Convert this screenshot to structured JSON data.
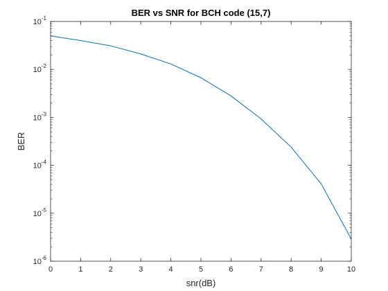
{
  "chart_data": {
    "type": "line",
    "title": "BER vs SNR for BCH code (15,7)",
    "xlabel": "snr(dB)",
    "ylabel": "BER",
    "xlim": [
      0,
      10
    ],
    "ylim": [
      1e-06,
      0.1
    ],
    "yscale": "log",
    "grid": false,
    "x_ticks": [
      0,
      1,
      2,
      3,
      4,
      5,
      6,
      7,
      8,
      9,
      10
    ],
    "x_tick_labels": [
      "0",
      "1",
      "2",
      "3",
      "4",
      "5",
      "6",
      "7",
      "8",
      "9",
      "10"
    ],
    "y_ticks": [
      1e-06,
      1e-05,
      0.0001,
      0.001,
      0.01,
      0.1
    ],
    "y_tick_labels": [
      {
        "base": "10",
        "exp": "-6"
      },
      {
        "base": "10",
        "exp": "-5"
      },
      {
        "base": "10",
        "exp": "-4"
      },
      {
        "base": "10",
        "exp": "-3"
      },
      {
        "base": "10",
        "exp": "-2"
      },
      {
        "base": "10",
        "exp": "-1"
      }
    ],
    "series": [
      {
        "color": "#0072bd",
        "x": [
          0,
          1,
          2,
          3,
          4,
          5,
          6,
          7,
          8,
          9,
          10
        ],
        "y": [
          0.05,
          0.04,
          0.031,
          0.021,
          0.013,
          0.0067,
          0.0028,
          0.00093,
          0.00024,
          4.1e-05,
          2.9e-06
        ]
      }
    ]
  }
}
